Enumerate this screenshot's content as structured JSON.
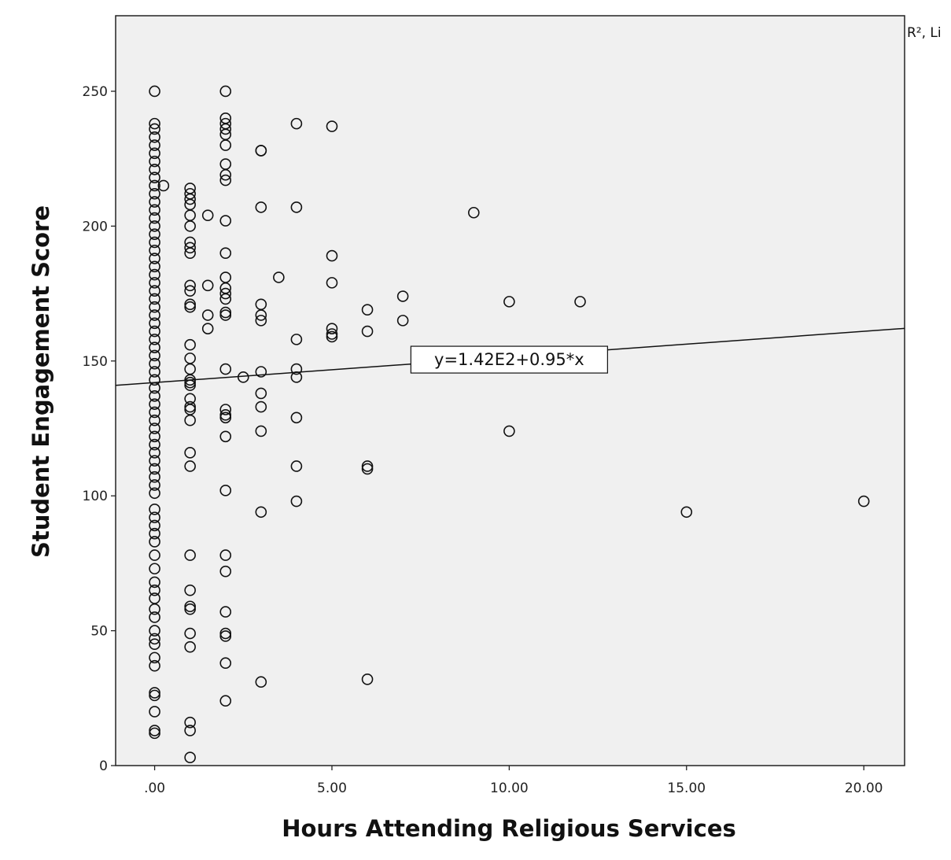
{
  "chart_data": {
    "type": "scatter",
    "title": "",
    "xlabel": "Hours Attending Religious Services",
    "ylabel": "Student Engagement Score",
    "xlim": [
      -1.1,
      21.15
    ],
    "ylim": [
      0,
      278
    ],
    "grid": false,
    "background": "#f0f0f0",
    "x_ticks": [
      0,
      5,
      10,
      15,
      20
    ],
    "x_tick_labels": [
      ".00",
      "5.00",
      "10.00",
      "15.00",
      "20.00"
    ],
    "y_ticks": [
      0,
      50,
      100,
      150,
      200,
      250
    ],
    "y_tick_labels": [
      "0",
      "50",
      "100",
      "150",
      "200",
      "250"
    ],
    "fit_line": {
      "intercept": 142,
      "slope": 0.95,
      "label": "y=1.42E2+0.95*x",
      "label_at": [
        10,
        150.5
      ]
    },
    "legend_cut_text": "R², Li",
    "groups": [
      {
        "x": 0,
        "y": [
          250,
          238,
          236,
          233,
          230,
          227,
          224,
          221,
          218,
          215,
          212,
          209,
          206,
          203,
          200,
          197,
          194,
          191,
          188,
          185,
          182,
          179,
          176,
          173,
          170,
          167,
          164,
          161,
          158,
          155,
          152,
          149,
          146,
          143,
          140,
          137,
          134,
          131,
          128,
          125,
          122,
          119,
          116,
          113,
          110,
          107,
          104,
          101,
          95,
          92,
          89,
          86,
          83,
          78,
          73,
          68,
          65,
          62,
          58,
          55,
          50,
          47,
          45,
          40,
          37,
          27,
          26,
          20,
          13,
          12
        ]
      },
      {
        "x": 0.25,
        "y": [
          215
        ]
      },
      {
        "x": 1,
        "y": [
          214,
          212,
          210,
          208,
          204,
          200,
          194,
          192,
          190,
          178,
          176,
          171,
          170,
          156,
          151,
          147,
          143,
          142,
          141,
          136,
          133,
          132,
          128,
          116,
          111,
          78,
          65,
          59,
          58,
          49,
          44,
          16,
          13,
          3
        ]
      },
      {
        "x": 1.5,
        "y": [
          204,
          178,
          167,
          162
        ]
      },
      {
        "x": 2,
        "y": [
          250,
          240,
          238,
          236,
          234,
          230,
          223,
          219,
          217,
          202,
          190,
          181,
          177,
          175,
          173,
          168,
          167,
          147,
          132,
          130,
          129,
          122,
          102,
          78,
          72,
          57,
          49,
          48,
          38,
          24
        ]
      },
      {
        "x": 2.5,
        "y": [
          144
        ]
      },
      {
        "x": 3,
        "y": [
          228,
          228,
          207,
          171,
          167,
          165,
          146,
          138,
          133,
          124,
          94,
          31
        ]
      },
      {
        "x": 3.5,
        "y": [
          181
        ]
      },
      {
        "x": 4,
        "y": [
          238,
          207,
          158,
          147,
          144,
          129,
          111,
          98
        ]
      },
      {
        "x": 5,
        "y": [
          237,
          189,
          179,
          162,
          160,
          159
        ]
      },
      {
        "x": 6,
        "y": [
          169,
          161,
          111,
          110,
          32
        ]
      },
      {
        "x": 7,
        "y": [
          174,
          165
        ]
      },
      {
        "x": 9,
        "y": [
          205
        ]
      },
      {
        "x": 10,
        "y": [
          172,
          124
        ]
      },
      {
        "x": 12,
        "y": [
          172
        ]
      },
      {
        "x": 15,
        "y": [
          94
        ]
      },
      {
        "x": 20,
        "y": [
          98
        ]
      }
    ]
  }
}
